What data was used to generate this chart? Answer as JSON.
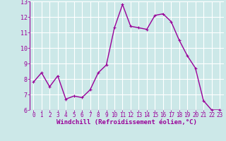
{
  "x": [
    0,
    1,
    2,
    3,
    4,
    5,
    6,
    7,
    8,
    9,
    10,
    11,
    12,
    13,
    14,
    15,
    16,
    17,
    18,
    19,
    20,
    21,
    22,
    23
  ],
  "y": [
    7.8,
    8.4,
    7.5,
    8.2,
    6.7,
    6.9,
    6.8,
    7.3,
    8.4,
    8.9,
    11.3,
    12.8,
    11.4,
    11.3,
    11.2,
    12.1,
    12.2,
    11.7,
    10.5,
    9.5,
    8.7,
    6.6,
    6.0,
    6.0
  ],
  "line_color": "#990099",
  "marker": "+",
  "marker_size": 3,
  "linewidth": 1.0,
  "bg_color": "#cce8e8",
  "grid_color": "#ffffff",
  "xlabel": "Windchill (Refroidissement éolien,°C)",
  "xlabel_color": "#990099",
  "tick_color": "#990099",
  "ylim": [
    6,
    13
  ],
  "xlim": [
    -0.5,
    23.5
  ],
  "yticks": [
    6,
    7,
    8,
    9,
    10,
    11,
    12,
    13
  ],
  "xticks": [
    0,
    1,
    2,
    3,
    4,
    5,
    6,
    7,
    8,
    9,
    10,
    11,
    12,
    13,
    14,
    15,
    16,
    17,
    18,
    19,
    20,
    21,
    22,
    23
  ],
  "tick_fontsize": 5.5,
  "ytick_fontsize": 6,
  "xlabel_fontsize": 6.5
}
